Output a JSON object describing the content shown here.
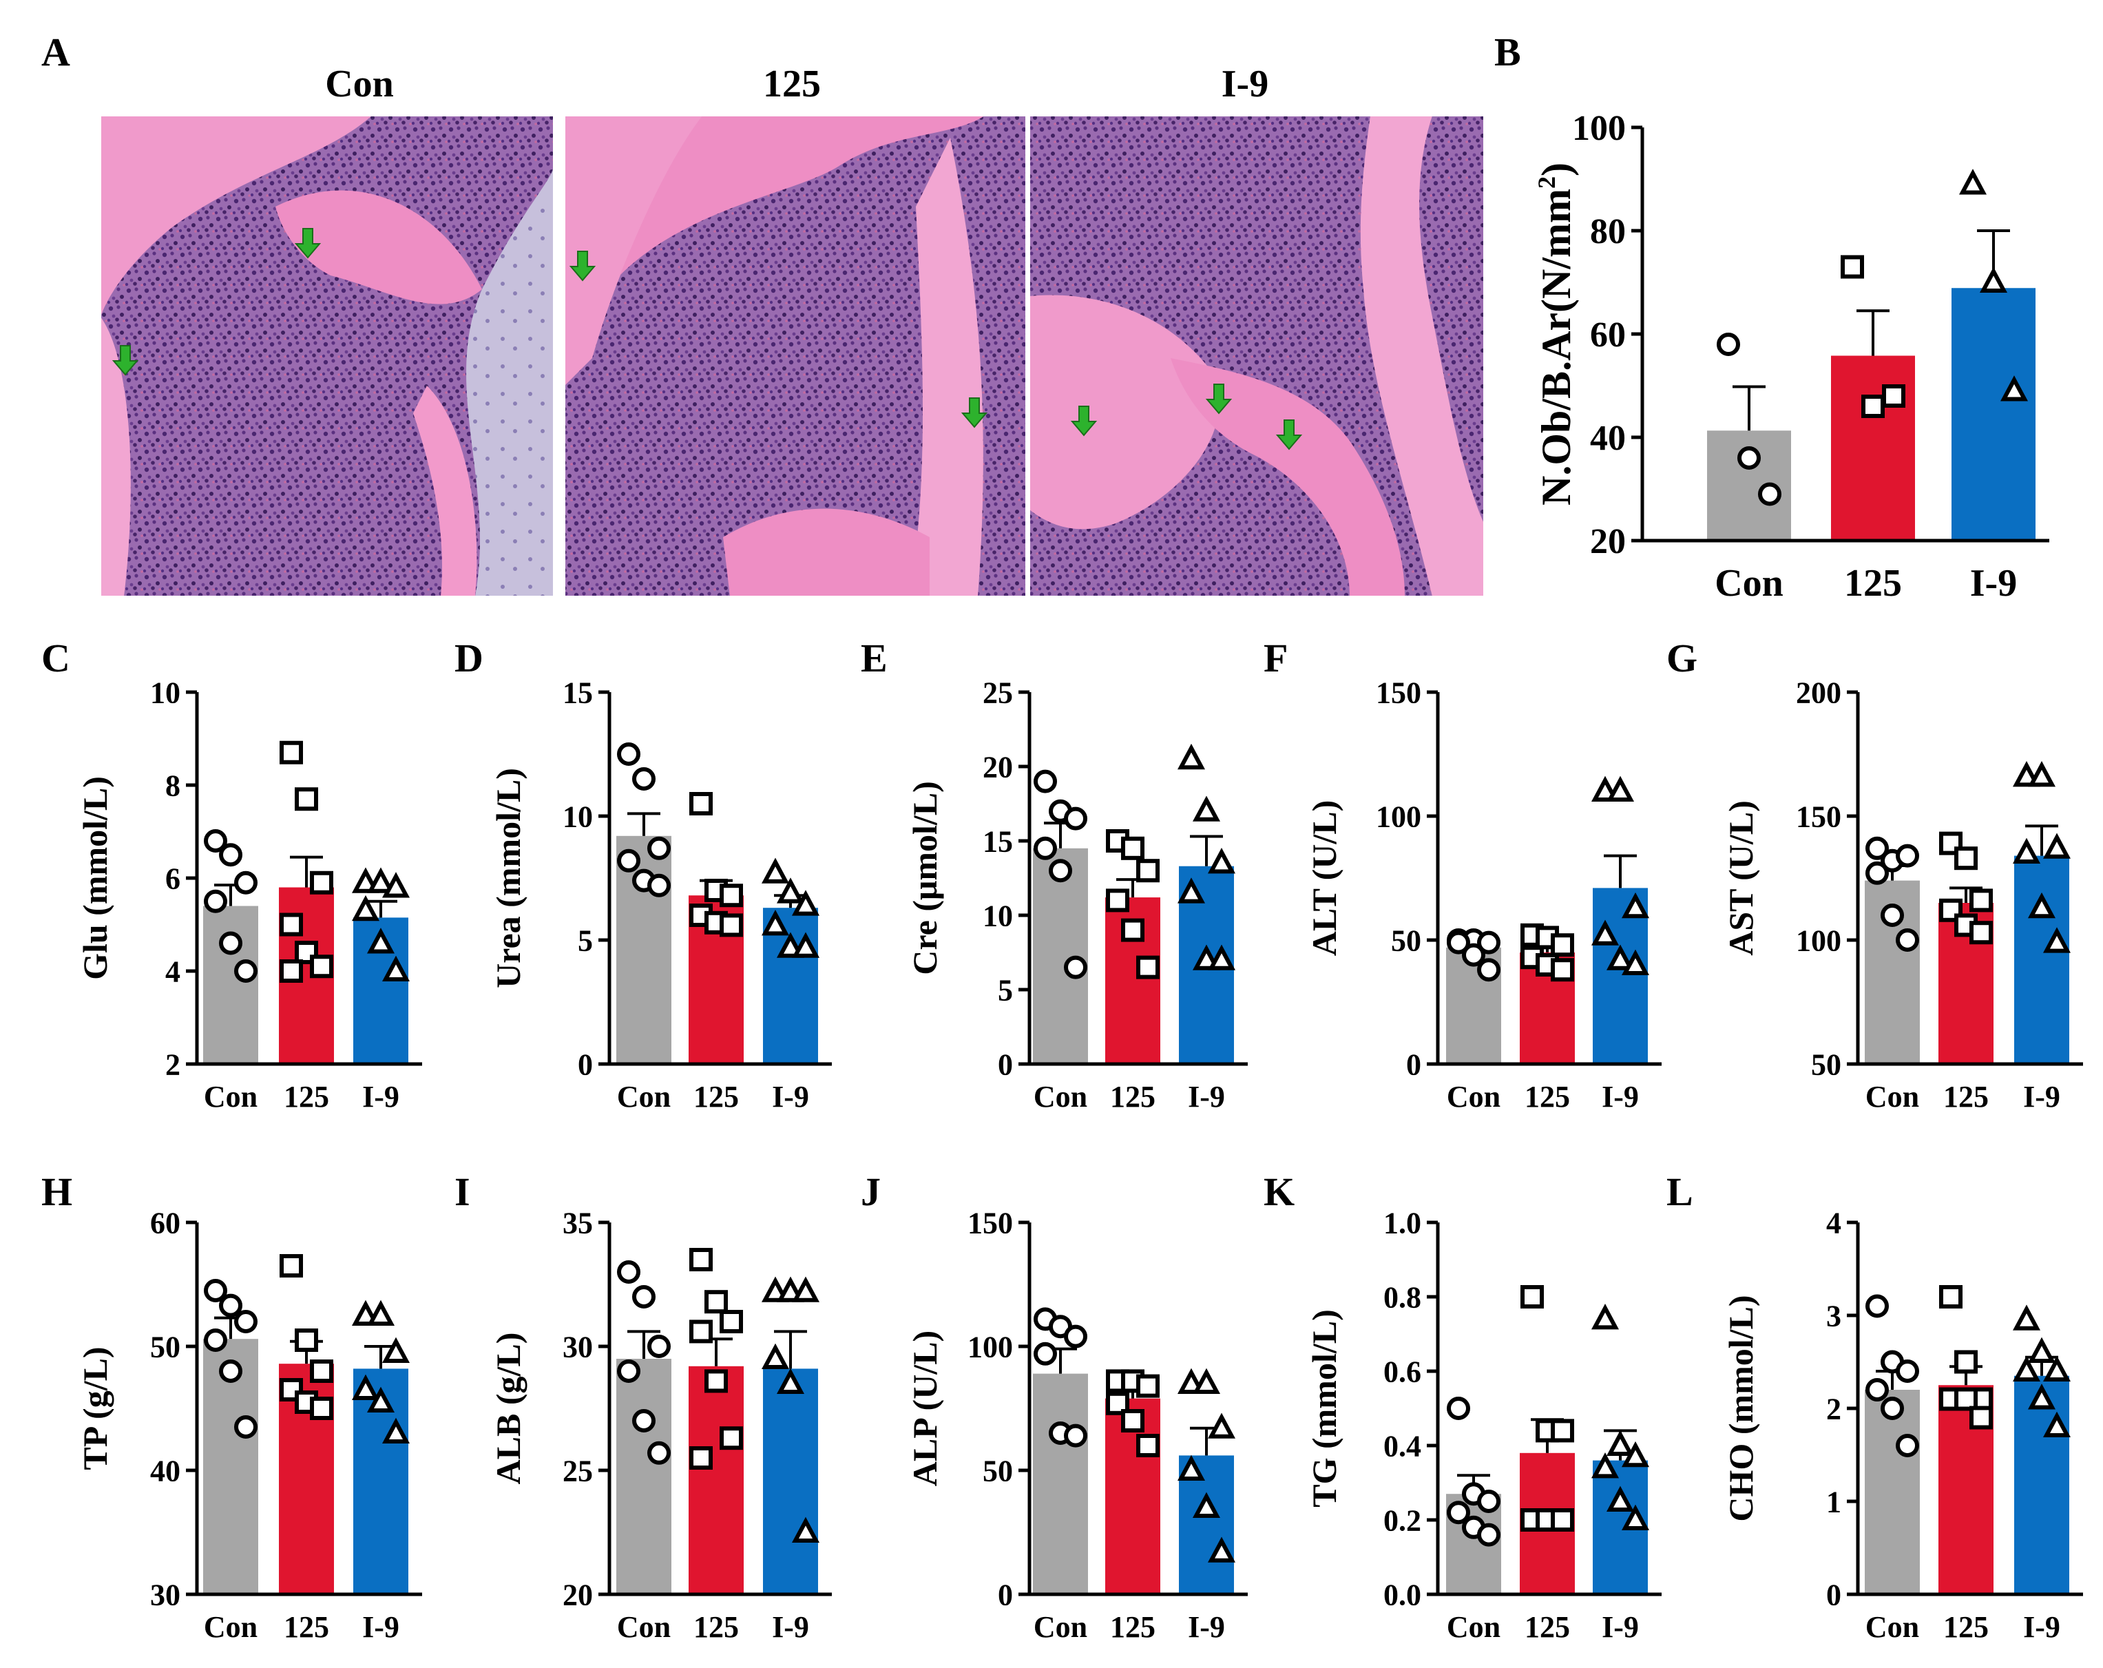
{
  "colors": {
    "con": "#a6a6a6",
    "g125": "#e0152f",
    "i9": "#0a6fc2",
    "tissue_pink": "#f08cc2",
    "marrow_purple": "#6b3f8f",
    "arrow_green": "#2db22d"
  },
  "panel_a": {
    "label": "A",
    "columns": [
      "Con",
      "125",
      "I-9"
    ],
    "arrow_counts": [
      2,
      2,
      3
    ]
  },
  "chart_data": [
    {
      "type": "bar",
      "panel": "B",
      "categories": [
        "Con",
        "125",
        "I-9"
      ],
      "ylabel": "N.Ob/B.Ar(N/mm",
      "ylabel_sup": "2",
      "ylabel_close": ")",
      "ylim": [
        20,
        100
      ],
      "yticks": [
        "20",
        "40",
        "60",
        "80",
        "100"
      ],
      "series": [
        {
          "name": "Con",
          "value": 41.3,
          "sem": 8.5,
          "points": [
            58,
            36,
            29
          ]
        },
        {
          "name": "125",
          "value": 55.8,
          "sem": 8.7,
          "points": [
            73,
            46,
            48
          ]
        },
        {
          "name": "I-9",
          "value": 68.9,
          "sem": 11.1,
          "points": [
            89,
            70,
            49
          ]
        }
      ]
    },
    {
      "type": "bar",
      "panel": "C",
      "categories": [
        "Con",
        "125",
        "I-9"
      ],
      "ylabel": "Glu (mmol/L)",
      "ylim": [
        2,
        10
      ],
      "yticks": [
        "2",
        "4",
        "6",
        "8",
        "10"
      ],
      "series": [
        {
          "name": "Con",
          "value": 5.4,
          "sem": 0.45,
          "points": [
            6.8,
            6.5,
            5.9,
            5.5,
            4.6,
            4.0
          ]
        },
        {
          "name": "125",
          "value": 5.8,
          "sem": 0.65,
          "points": [
            8.7,
            7.7,
            5.9,
            5.0,
            4.4,
            4.1,
            4.0
          ]
        },
        {
          "name": "I-9",
          "value": 5.15,
          "sem": 0.35,
          "points": [
            5.9,
            5.9,
            5.8,
            5.3,
            4.6,
            4.0
          ]
        }
      ]
    },
    {
      "type": "bar",
      "panel": "D",
      "categories": [
        "Con",
        "125",
        "I-9"
      ],
      "ylabel": "Urea (mmol/L)",
      "ylim": [
        0,
        15
      ],
      "yticks": [
        "0",
        "5",
        "10",
        "15"
      ],
      "series": [
        {
          "name": "Con",
          "value": 9.2,
          "sem": 0.9,
          "points": [
            12.5,
            11.5,
            8.7,
            8.2,
            7.4,
            7.2
          ]
        },
        {
          "name": "125",
          "value": 6.8,
          "sem": 0.6,
          "points": [
            10.5,
            7.0,
            6.8,
            6.0,
            5.7,
            5.6
          ]
        },
        {
          "name": "I-9",
          "value": 6.3,
          "sem": 0.5,
          "points": [
            7.7,
            6.9,
            6.4,
            5.6,
            4.7,
            4.7
          ]
        }
      ]
    },
    {
      "type": "bar",
      "panel": "E",
      "categories": [
        "Con",
        "125",
        "I-9"
      ],
      "ylabel": "Cre (μmol/L)",
      "ylim": [
        0,
        25
      ],
      "yticks": [
        "0",
        "5",
        "10",
        "15",
        "20",
        "25"
      ],
      "series": [
        {
          "name": "Con",
          "value": 14.5,
          "sem": 1.7,
          "points": [
            19.0,
            17.0,
            16.5,
            14.5,
            13.0,
            6.5
          ]
        },
        {
          "name": "125",
          "value": 11.2,
          "sem": 1.2,
          "points": [
            15.0,
            14.5,
            13.0,
            11.0,
            9.0,
            6.5
          ]
        },
        {
          "name": "I-9",
          "value": 13.3,
          "sem": 2.0,
          "points": [
            20.5,
            17.0,
            13.5,
            11.5,
            7.0,
            7.0
          ]
        }
      ]
    },
    {
      "type": "bar",
      "panel": "F",
      "categories": [
        "Con",
        "125",
        "I-9"
      ],
      "ylabel": "ALT (U/L)",
      "ylim": [
        0,
        150
      ],
      "yticks": [
        "0",
        "50",
        "100",
        "150"
      ],
      "series": [
        {
          "name": "Con",
          "value": 47,
          "sem": 2.5,
          "points": [
            50,
            50,
            49,
            49,
            44,
            38
          ]
        },
        {
          "name": "125",
          "value": 45,
          "sem": 3.5,
          "points": [
            52,
            51,
            48,
            43,
            40,
            38
          ]
        },
        {
          "name": "I-9",
          "value": 71,
          "sem": 13,
          "points": [
            110,
            110,
            63,
            52,
            42,
            40
          ]
        }
      ]
    },
    {
      "type": "bar",
      "panel": "G",
      "categories": [
        "Con",
        "125",
        "I-9"
      ],
      "ylabel": "AST (U/L)",
      "ylim": [
        50,
        200
      ],
      "yticks": [
        "50",
        "100",
        "150",
        "200"
      ],
      "series": [
        {
          "name": "Con",
          "value": 124,
          "sem": 6,
          "points": [
            137,
            132,
            134,
            127,
            110,
            100
          ]
        },
        {
          "name": "125",
          "value": 115,
          "sem": 6,
          "points": [
            139,
            133,
            116,
            112,
            106,
            103
          ]
        },
        {
          "name": "I-9",
          "value": 134,
          "sem": 12,
          "points": [
            166,
            166,
            137,
            135,
            113,
            99
          ]
        }
      ]
    },
    {
      "type": "bar",
      "panel": "H",
      "categories": [
        "Con",
        "125",
        "I-9"
      ],
      "ylabel": "TP (g/L)",
      "ylim": [
        30,
        60
      ],
      "yticks": [
        "30",
        "40",
        "50",
        "60"
      ],
      "series": [
        {
          "name": "Con",
          "value": 50.6,
          "sem": 1.7,
          "points": [
            54.5,
            53.3,
            52.0,
            50.5,
            48.0,
            43.5
          ]
        },
        {
          "name": "125",
          "value": 48.6,
          "sem": 1.8,
          "points": [
            56.5,
            50.5,
            48.0,
            46.5,
            45.5,
            45.0
          ]
        },
        {
          "name": "I-9",
          "value": 48.2,
          "sem": 1.8,
          "points": [
            52.5,
            52.5,
            49.5,
            46.5,
            45.5,
            43.0
          ]
        }
      ]
    },
    {
      "type": "bar",
      "panel": "I",
      "categories": [
        "Con",
        "125",
        "I-9"
      ],
      "ylabel": "ALB (g/L)",
      "ylim": [
        20,
        35
      ],
      "yticks": [
        "20",
        "25",
        "30",
        "35"
      ],
      "series": [
        {
          "name": "Con",
          "value": 29.5,
          "sem": 1.1,
          "points": [
            33.0,
            32.0,
            30.0,
            29.0,
            27.0,
            25.7
          ]
        },
        {
          "name": "125",
          "value": 29.2,
          "sem": 1.1,
          "points": [
            33.5,
            31.8,
            31.0,
            30.6,
            28.6,
            26.3,
            25.5
          ]
        },
        {
          "name": "I-9",
          "value": 29.1,
          "sem": 1.5,
          "points": [
            32.2,
            32.2,
            32.2,
            29.5,
            28.5,
            22.5
          ]
        }
      ]
    },
    {
      "type": "bar",
      "panel": "J",
      "categories": [
        "Con",
        "125",
        "I-9"
      ],
      "ylabel": "ALP (U/L)",
      "ylim": [
        0,
        150
      ],
      "yticks": [
        "0",
        "50",
        "100",
        "150"
      ],
      "series": [
        {
          "name": "Con",
          "value": 89,
          "sem": 10,
          "points": [
            111,
            108,
            104,
            97,
            65,
            64
          ]
        },
        {
          "name": "125",
          "value": 79,
          "sem": 6,
          "points": [
            86,
            86,
            84,
            77,
            70,
            60
          ]
        },
        {
          "name": "I-9",
          "value": 56,
          "sem": 11,
          "points": [
            85,
            85,
            67,
            50,
            35,
            17
          ]
        }
      ]
    },
    {
      "type": "bar",
      "panel": "K",
      "categories": [
        "Con",
        "125",
        "I-9"
      ],
      "ylabel": "TG (mmol/L)",
      "ylim": [
        0.0,
        1.0
      ],
      "yticks": [
        "0.0",
        "0.2",
        "0.4",
        "0.6",
        "0.8",
        "1.0"
      ],
      "series": [
        {
          "name": "Con",
          "value": 0.27,
          "sem": 0.05,
          "points": [
            0.5,
            0.27,
            0.25,
            0.22,
            0.18,
            0.16
          ]
        },
        {
          "name": "125",
          "value": 0.38,
          "sem": 0.09,
          "points": [
            0.8,
            0.44,
            0.44,
            0.2,
            0.2,
            0.2
          ]
        },
        {
          "name": "I-9",
          "value": 0.36,
          "sem": 0.08,
          "points": [
            0.74,
            0.4,
            0.37,
            0.34,
            0.25,
            0.2
          ]
        }
      ]
    },
    {
      "type": "bar",
      "panel": "L",
      "categories": [
        "Con",
        "125",
        "I-9"
      ],
      "ylabel": "CHO (mmol/L)",
      "ylim": [
        0,
        4
      ],
      "yticks": [
        "0",
        "1",
        "2",
        "3",
        "4"
      ],
      "series": [
        {
          "name": "Con",
          "value": 2.2,
          "sem": 0.2,
          "points": [
            3.1,
            2.5,
            2.4,
            2.2,
            2.0,
            1.6
          ]
        },
        {
          "name": "125",
          "value": 2.25,
          "sem": 0.2,
          "points": [
            3.2,
            2.5,
            2.1,
            2.1,
            2.1,
            1.9
          ]
        },
        {
          "name": "I-9",
          "value": 2.35,
          "sem": 0.2,
          "points": [
            2.95,
            2.6,
            2.4,
            2.4,
            2.1,
            1.8
          ]
        }
      ]
    }
  ]
}
